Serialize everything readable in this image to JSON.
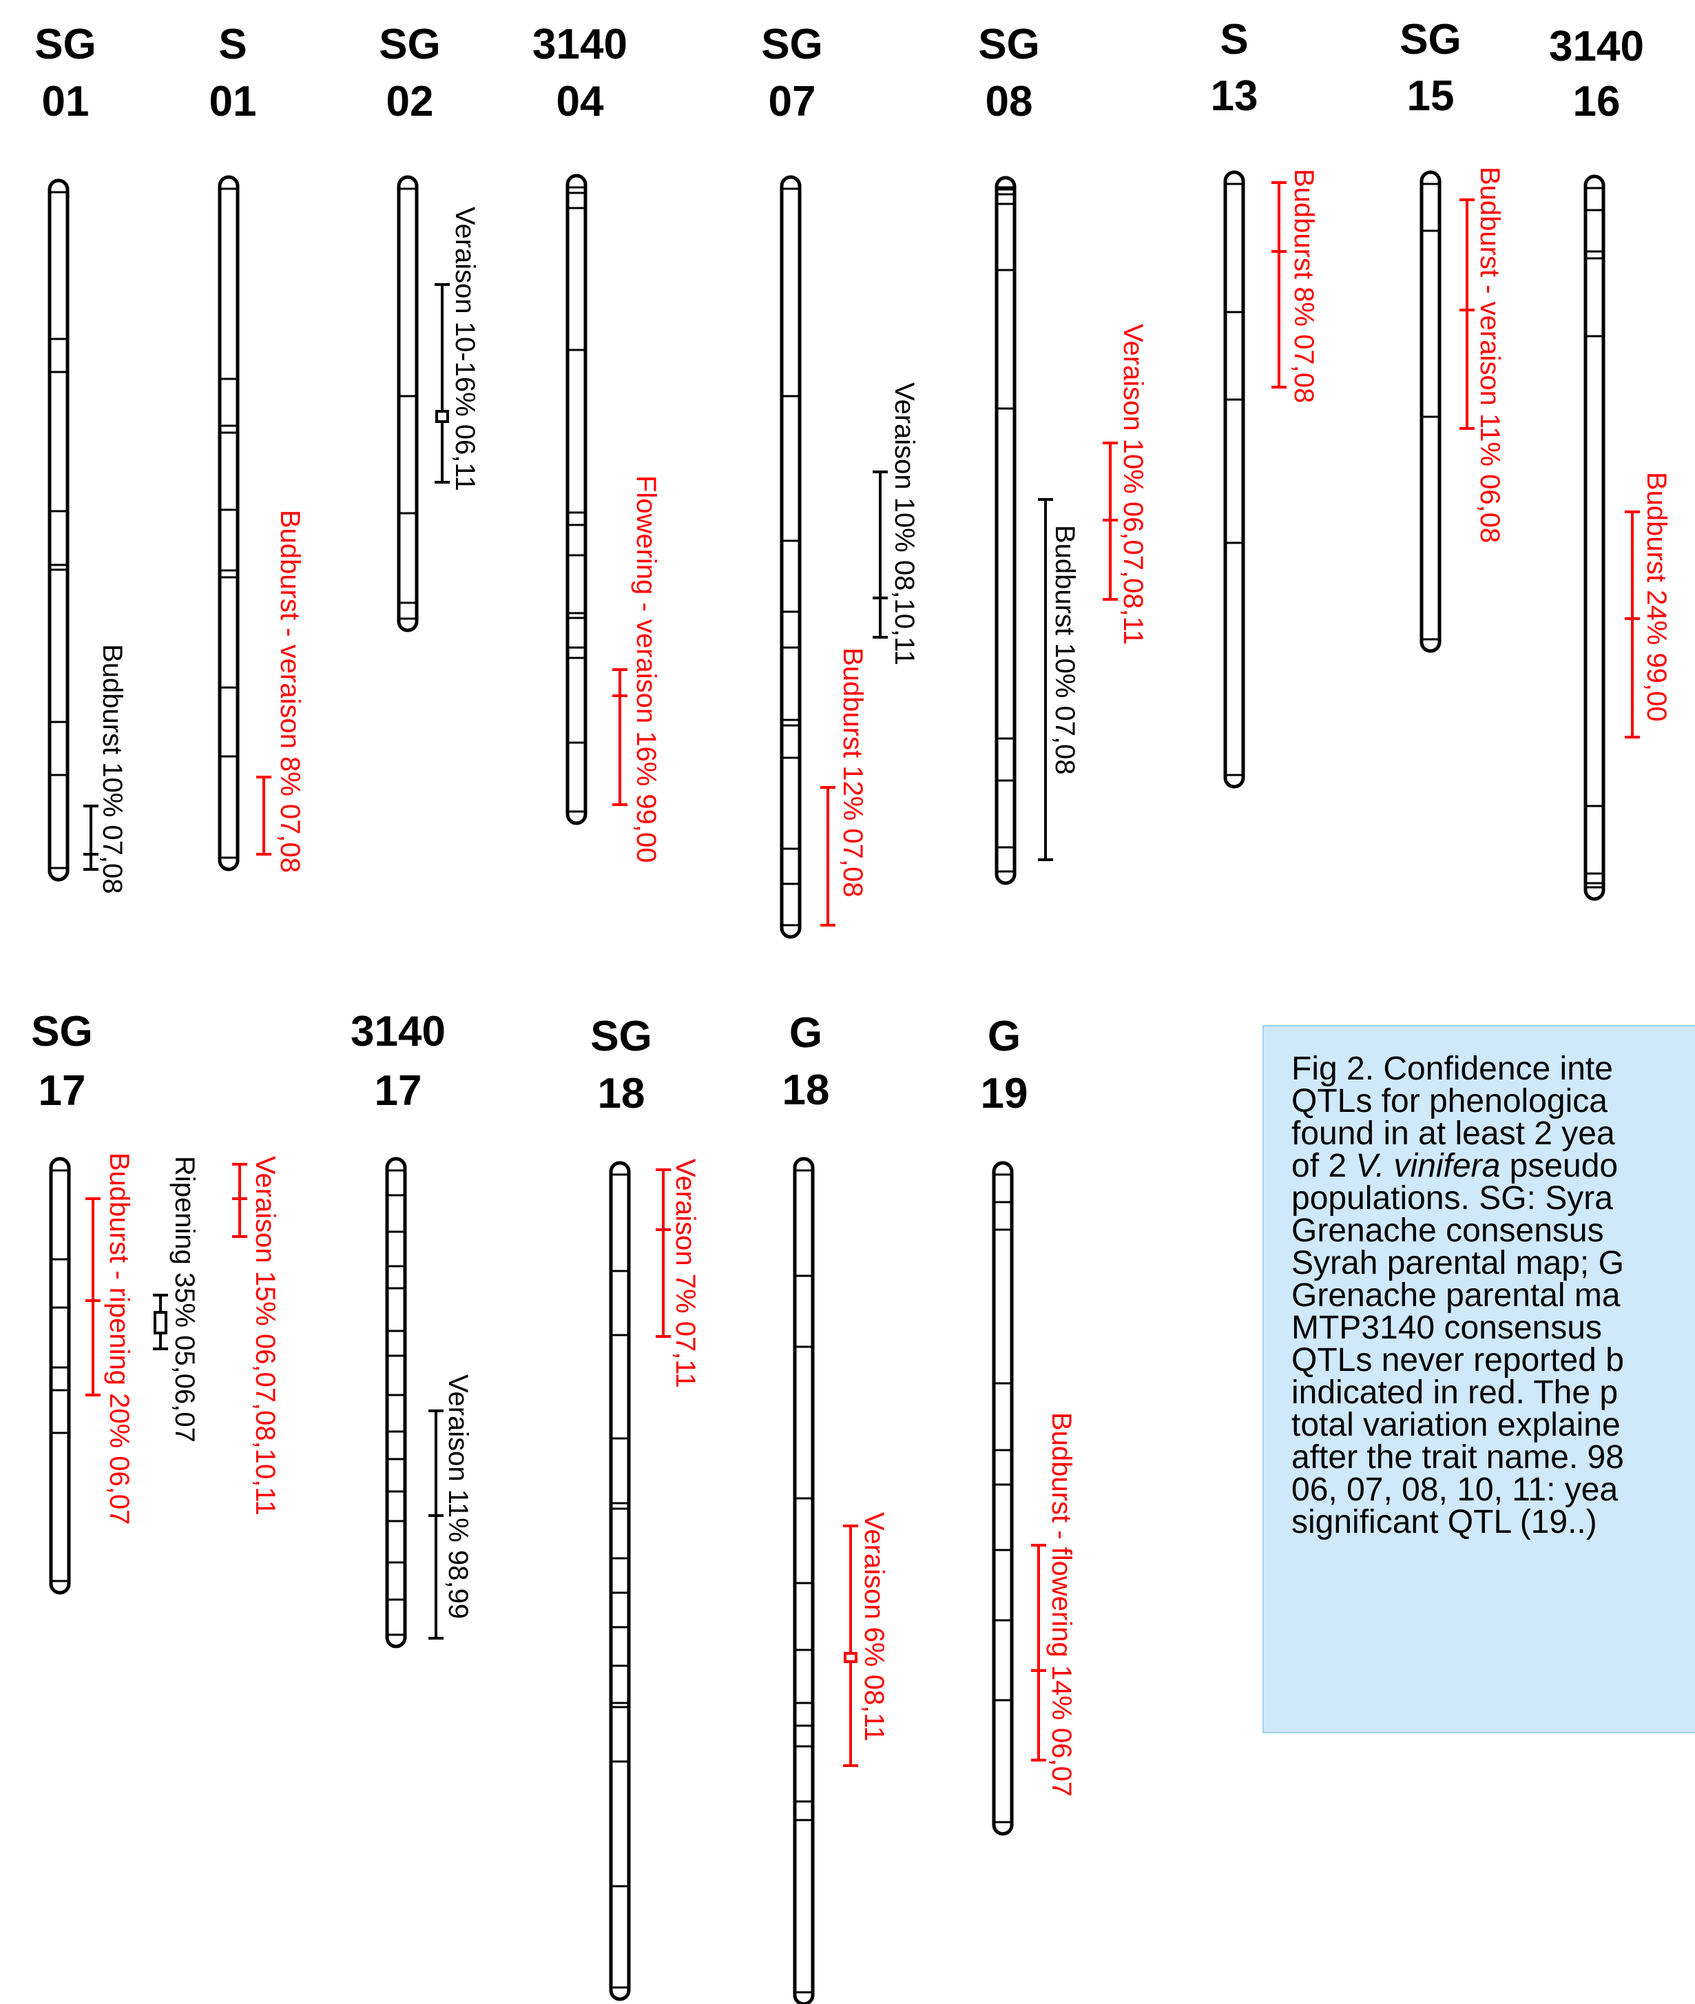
{
  "figure": {
    "colors": {
      "bar": "#000000",
      "known_qtl": "#000000",
      "new_qtl": "#ff0000",
      "caption_bg": "#cfe8fa"
    },
    "linkage_groups": [
      {
        "map": "SG",
        "lg": "01",
        "qtls": [
          {
            "label": "Budburst 10% 07,08",
            "new": false
          }
        ]
      },
      {
        "map": "S",
        "lg": "01",
        "qtls": [
          {
            "label": "Budburst - veraison 8% 07,08",
            "new": true
          }
        ]
      },
      {
        "map": "SG",
        "lg": "02",
        "qtls": [
          {
            "label": "Veraison 10-16% 06,11",
            "new": false
          }
        ]
      },
      {
        "map": "3140",
        "lg": "04",
        "qtls": [
          {
            "label": "Flowering - veraison 16% 99,00",
            "new": true
          }
        ]
      },
      {
        "map": "SG",
        "lg": "07",
        "qtls": [
          {
            "label": "Veraison 10% 08,10,11",
            "new": false
          },
          {
            "label": "Budburst 12% 07,08",
            "new": true
          }
        ]
      },
      {
        "map": "SG",
        "lg": "08",
        "qtls": [
          {
            "label": "Veraison 10% 06,07,08,11",
            "new": true
          },
          {
            "label": "Budburst 10% 07,08",
            "new": false
          }
        ]
      },
      {
        "map": "S",
        "lg": "13",
        "qtls": [
          {
            "label": "Budburst 8% 07,08",
            "new": true
          }
        ]
      },
      {
        "map": "SG",
        "lg": "15",
        "qtls": [
          {
            "label": "Budburst - veraison 11% 06,08",
            "new": true
          }
        ]
      },
      {
        "map": "3140",
        "lg": "16",
        "qtls": [
          {
            "label": "Budburst 24% 99,00",
            "new": true
          }
        ]
      },
      {
        "map": "SG",
        "lg": "17",
        "qtls": [
          {
            "label": "Budburst - ripening 20% 06,07",
            "new": true
          },
          {
            "label": "Ripening 35% 05,06,07",
            "new": false
          },
          {
            "label": "Veraison 15% 06,07,08,10,11",
            "new": true
          }
        ]
      },
      {
        "map": "3140",
        "lg": "17",
        "qtls": [
          {
            "label": "Veraison 11% 98,99",
            "new": false
          }
        ]
      },
      {
        "map": "SG",
        "lg": "18",
        "qtls": [
          {
            "label": "Veraison 7% 07,11",
            "new": true
          }
        ]
      },
      {
        "map": "G",
        "lg": "18",
        "qtls": [
          {
            "label": "Veraison 6% 08,11",
            "new": true
          }
        ]
      },
      {
        "map": "G",
        "lg": "19",
        "qtls": [
          {
            "label": "Budburst - flowering 14% 06,07",
            "new": true
          }
        ]
      }
    ]
  },
  "caption": {
    "lines": [
      {
        "text": "Fig 2. Confidence inte"
      },
      {
        "text": "QTLs for phenologica"
      },
      {
        "before": "found in at least 2 yea"
      },
      {
        "before": "of 2 ",
        "italic": "V. vinifera",
        "after": " pseudo"
      },
      {
        "text": "populations. SG: Syra"
      },
      {
        "text": "Grenache consensus"
      },
      {
        "text": "Syrah parental map; G"
      },
      {
        "text": "Grenache parental ma"
      },
      {
        "text": "MTP3140 consensus"
      },
      {
        "text": "QTLs never reported b"
      },
      {
        "text": "indicated in red. The p"
      },
      {
        "text": "total variation explaine"
      },
      {
        "text": "after the trait name. 98"
      },
      {
        "text": "06, 07, 08, 10, 11: yea"
      },
      {
        "text": "significant QTL (19..)"
      }
    ]
  }
}
